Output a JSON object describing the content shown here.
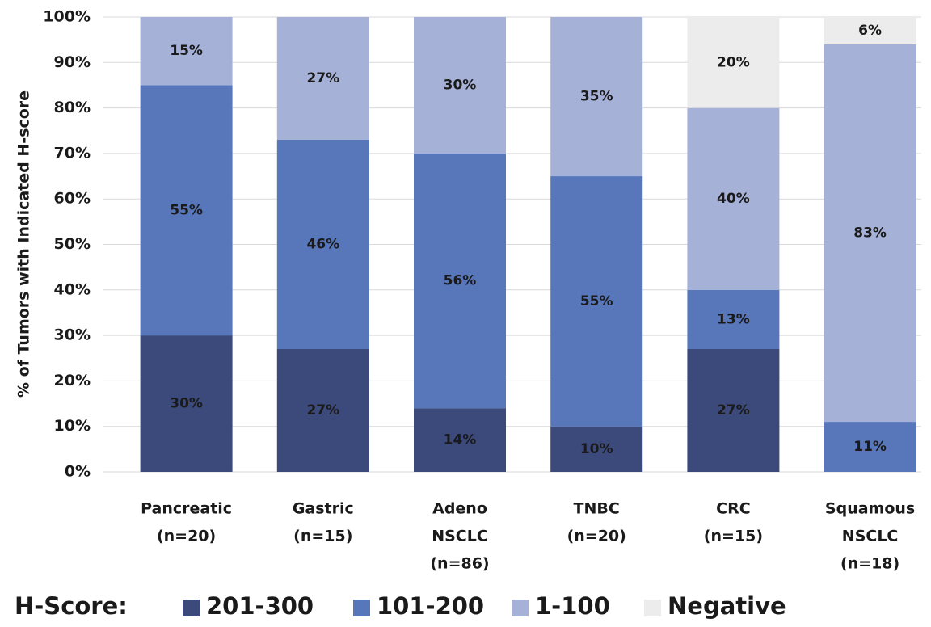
{
  "chart_data": {
    "type": "stacked-bar",
    "y_label": "% of Tumors with Indicated H-score",
    "legend_title": "H-Score:",
    "categories": [
      [
        "Pancreatic",
        "(n=20)"
      ],
      [
        "Gastric",
        "(n=15)"
      ],
      [
        "Adeno",
        "NSCLC",
        "(n=86)"
      ],
      [
        "TNBC",
        "(n=20)"
      ],
      [
        "CRC",
        "(n=15)"
      ],
      [
        "Squamous",
        "NSCLC",
        "(n=18)"
      ]
    ],
    "series": [
      {
        "name": "201-300",
        "color": "#3b4a7b",
        "label_color": "#ffffff",
        "values": [
          30,
          27,
          14,
          10,
          27,
          0
        ],
        "value_labels": [
          "30%",
          "27%",
          "14%",
          "10%",
          "27%",
          null
        ]
      },
      {
        "name": "101-200",
        "color": "#5877bb",
        "label_color": "#ffffff",
        "values": [
          55,
          46,
          56,
          55,
          13,
          11
        ],
        "value_labels": [
          "55%",
          "46%",
          "56%",
          "55%",
          "13%",
          "11%"
        ]
      },
      {
        "name": "1-100",
        "color": "#a6b1d8",
        "label_color": "#1a1a1a",
        "values": [
          15,
          27,
          30,
          35,
          40,
          83
        ],
        "value_labels": [
          "15%",
          "27%",
          "30%",
          "35%",
          "40%",
          "83%"
        ]
      },
      {
        "name": "Negative",
        "color": "#ececec",
        "label_color": "#555555",
        "values": [
          0,
          0,
          0,
          0,
          20,
          6
        ],
        "value_labels": [
          null,
          null,
          null,
          null,
          "20%",
          "6%"
        ]
      }
    ],
    "ylim": [
      0,
      100
    ],
    "yticks": [
      {
        "value": 0,
        "label": "0%"
      },
      {
        "value": 10,
        "label": "10%"
      },
      {
        "value": 20,
        "label": "20%"
      },
      {
        "value": 30,
        "label": "30%"
      },
      {
        "value": 40,
        "label": "40%"
      },
      {
        "value": 50,
        "label": "50%"
      },
      {
        "value": 60,
        "label": "60%"
      },
      {
        "value": 70,
        "label": "70%"
      },
      {
        "value": 80,
        "label": "80%"
      },
      {
        "value": 90,
        "label": "90%"
      },
      {
        "value": 100,
        "label": "100%"
      }
    ],
    "grid": true
  }
}
